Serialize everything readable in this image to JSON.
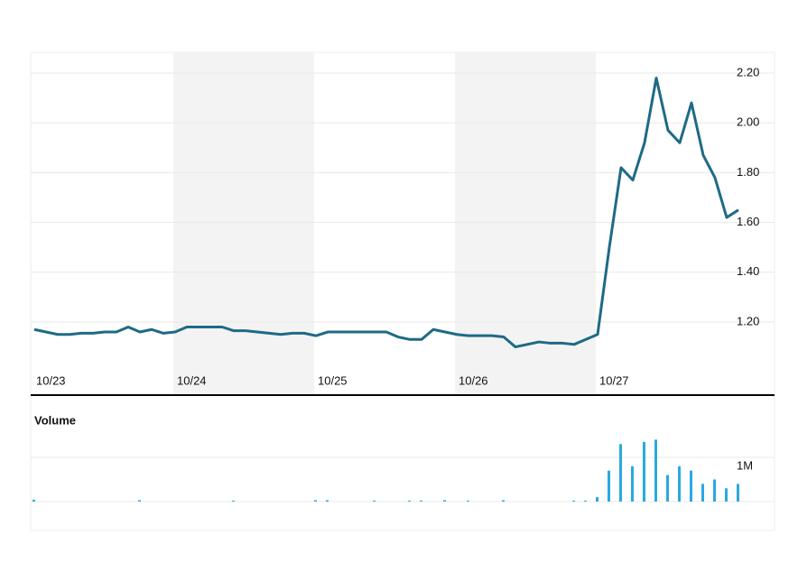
{
  "chart_data": [
    {
      "type": "line",
      "categories": [
        "10/23",
        null,
        null,
        null,
        null,
        null,
        null,
        null,
        null,
        null,
        null,
        null,
        "10/24",
        null,
        null,
        null,
        null,
        null,
        null,
        null,
        null,
        null,
        null,
        null,
        "10/25",
        null,
        null,
        null,
        null,
        null,
        null,
        null,
        null,
        null,
        null,
        null,
        "10/26",
        null,
        null,
        null,
        null,
        null,
        null,
        null,
        null,
        null,
        null,
        null,
        "10/27",
        null,
        null,
        null,
        null,
        null,
        null,
        null,
        null,
        null,
        null,
        null,
        null
      ],
      "values": [
        1.17,
        1.16,
        1.15,
        1.15,
        1.155,
        1.155,
        1.16,
        1.16,
        1.18,
        1.16,
        1.17,
        1.155,
        1.16,
        1.18,
        1.18,
        1.18,
        1.18,
        1.165,
        1.165,
        1.16,
        1.155,
        1.15,
        1.155,
        1.155,
        1.145,
        1.16,
        1.16,
        1.16,
        1.16,
        1.16,
        1.16,
        1.14,
        1.13,
        1.13,
        1.17,
        1.16,
        1.15,
        1.145,
        1.145,
        1.145,
        1.14,
        1.1,
        1.11,
        1.12,
        1.115,
        1.115,
        1.11,
        1.13,
        1.15,
        1.5,
        1.82,
        1.77,
        1.92,
        2.18,
        1.97,
        1.92,
        2.08,
        1.87,
        1.78,
        1.62,
        1.65
      ],
      "color": "#1e6a87",
      "ylim": [
        1.026,
        2.276
      ],
      "yticks": [
        {
          "value": 1.2,
          "label": "1.20"
        },
        {
          "value": 1.4,
          "label": "1.40"
        },
        {
          "value": 1.6,
          "label": "1.60"
        },
        {
          "value": 1.8,
          "label": "1.80"
        },
        {
          "value": 2.0,
          "label": "2.00"
        },
        {
          "value": 2.2,
          "label": "2.20"
        }
      ],
      "grid": true
    },
    {
      "type": "bar",
      "title": "Volume",
      "values": [
        40000,
        0,
        0,
        0,
        0,
        0,
        0,
        0,
        0,
        30000,
        0,
        0,
        0,
        0,
        0,
        0,
        0,
        20000,
        0,
        0,
        0,
        0,
        0,
        0,
        30000,
        30000,
        0,
        0,
        0,
        20000,
        0,
        0,
        20000,
        20000,
        0,
        30000,
        0,
        20000,
        0,
        0,
        30000,
        0,
        0,
        0,
        0,
        0,
        20000,
        20000,
        100000,
        700000,
        1300000,
        800000,
        1350000,
        1400000,
        600000,
        800000,
        700000,
        400000,
        500000,
        300000,
        400000
      ],
      "color": "#29a9e1",
      "ylim": [
        0,
        2000000
      ],
      "yticks": [
        {
          "value": 1000000,
          "label": "1M"
        }
      ],
      "grid": true
    }
  ]
}
